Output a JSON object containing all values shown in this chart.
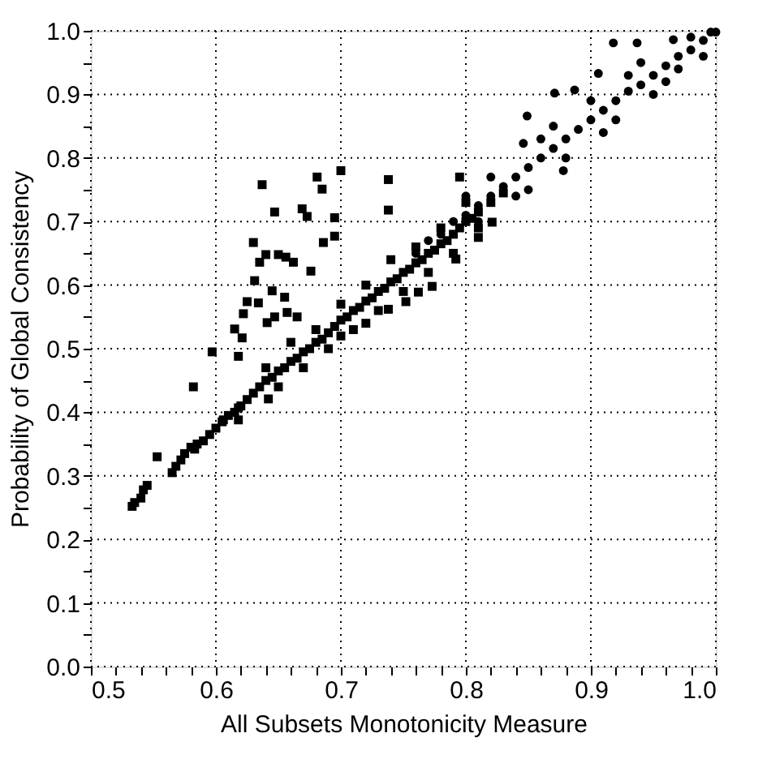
{
  "chart_data": {
    "type": "scatter",
    "xlabel": "All Subsets Monotonicity Measure",
    "ylabel": "Probability of Global Consistency",
    "xlim": [
      0.5,
      1.0
    ],
    "ylim": [
      0.0,
      1.0
    ],
    "xticks": [
      0.5,
      {
        "value": 0.52,
        "label": null
      },
      {
        "value": 0.54,
        "label": null
      },
      {
        "value": 0.56,
        "label": null
      },
      {
        "value": 0.58,
        "label": null
      },
      0.6,
      {
        "value": 0.62,
        "label": null
      },
      {
        "value": 0.64,
        "label": null
      },
      {
        "value": 0.66,
        "label": null
      },
      {
        "value": 0.68,
        "label": null
      },
      0.7,
      {
        "value": 0.72,
        "label": null
      },
      {
        "value": 0.74,
        "label": null
      },
      {
        "value": 0.76,
        "label": null
      },
      {
        "value": 0.78,
        "label": null
      },
      0.8,
      {
        "value": 0.82,
        "label": null
      },
      {
        "value": 0.84,
        "label": null
      },
      {
        "value": 0.86,
        "label": null
      },
      {
        "value": 0.88,
        "label": null
      },
      0.9,
      {
        "value": 0.92,
        "label": null
      },
      {
        "value": 0.94,
        "label": null
      },
      {
        "value": 0.96,
        "label": null
      },
      {
        "value": 0.98,
        "label": null
      },
      {
        "value": 1,
        "label": "1.0"
      }
    ],
    "yticks": [
      {
        "value": 0,
        "label": "0.0"
      },
      {
        "value": 0.05,
        "label": null
      },
      0.1,
      {
        "value": 0.15,
        "label": null
      },
      0.2,
      {
        "value": 0.25,
        "label": null
      },
      0.3,
      {
        "value": 0.35,
        "label": null
      },
      0.4,
      {
        "value": 0.45,
        "label": null
      },
      0.5,
      {
        "value": 0.55,
        "label": null
      },
      0.6,
      {
        "value": 0.65,
        "label": null
      },
      0.7,
      {
        "value": 0.75,
        "label": null
      },
      0.8,
      {
        "value": 0.85,
        "label": null
      },
      0.9,
      {
        "value": 0.95,
        "label": null
      },
      {
        "value": 1,
        "label": "1.0"
      }
    ],
    "grid": true,
    "series": [
      {
        "color": "#000000",
        "marker": "square",
        "x": [
          0.533,
          0.535,
          0.54,
          0.542,
          0.545,
          0.565,
          0.568,
          0.572,
          0.575,
          0.58,
          0.585,
          0.59,
          0.595,
          0.6,
          0.605,
          0.61,
          0.615,
          0.62,
          0.625,
          0.63,
          0.635,
          0.64,
          0.645,
          0.65,
          0.655,
          0.66,
          0.665,
          0.67,
          0.675,
          0.68,
          0.685,
          0.69,
          0.695,
          0.7,
          0.705,
          0.71,
          0.715,
          0.72,
          0.725,
          0.73,
          0.735,
          0.74,
          0.745,
          0.75,
          0.755,
          0.76,
          0.765,
          0.77,
          0.775,
          0.78,
          0.785,
          0.79,
          0.795,
          0.8,
          0.805,
          0.81,
          0.82,
          0.83,
          0.68,
          0.69,
          0.7,
          0.71,
          0.72,
          0.73,
          0.74,
          0.75,
          0.76,
          0.77,
          0.78,
          0.79,
          0.8,
          0.81,
          0.66,
          0.65,
          0.64,
          0.67,
          0.72,
          0.7,
          0.637,
          0.647,
          0.669,
          0.673,
          0.681,
          0.685,
          0.7,
          0.695,
          0.695,
          0.686,
          0.63,
          0.635,
          0.64,
          0.65,
          0.656,
          0.662,
          0.631,
          0.625,
          0.634,
          0.645,
          0.655,
          0.676,
          0.622,
          0.641,
          0.647,
          0.657,
          0.665,
          0.615,
          0.621,
          0.597,
          0.738,
          0.738,
          0.795,
          0.582,
          0.583,
          0.553,
          0.618,
          0.618,
          0.606,
          0.642,
          0.618,
          0.792,
          0.773,
          0.762,
          0.752,
          0.738,
          0.821,
          0.81
        ],
        "values": [
          0.252,
          0.258,
          0.265,
          0.278,
          0.285,
          0.305,
          0.315,
          0.325,
          0.335,
          0.345,
          0.35,
          0.355,
          0.365,
          0.375,
          0.385,
          0.395,
          0.4,
          0.41,
          0.42,
          0.43,
          0.44,
          0.45,
          0.455,
          0.465,
          0.47,
          0.48,
          0.485,
          0.495,
          0.5,
          0.51,
          0.515,
          0.525,
          0.535,
          0.545,
          0.55,
          0.56,
          0.565,
          0.575,
          0.58,
          0.59,
          0.595,
          0.605,
          0.61,
          0.62,
          0.625,
          0.635,
          0.64,
          0.65,
          0.655,
          0.665,
          0.67,
          0.68,
          0.69,
          0.7,
          0.705,
          0.715,
          0.73,
          0.745,
          0.53,
          0.5,
          0.57,
          0.53,
          0.6,
          0.56,
          0.64,
          0.59,
          0.66,
          0.62,
          0.69,
          0.65,
          0.73,
          0.69,
          0.51,
          0.44,
          0.47,
          0.47,
          0.54,
          0.52,
          0.758,
          0.715,
          0.72,
          0.708,
          0.77,
          0.751,
          0.78,
          0.706,
          0.677,
          0.667,
          0.667,
          0.636,
          0.648,
          0.648,
          0.644,
          0.636,
          0.607,
          0.574,
          0.572,
          0.591,
          0.581,
          0.622,
          0.555,
          0.541,
          0.55,
          0.557,
          0.55,
          0.531,
          0.517,
          0.495,
          0.766,
          0.718,
          0.77,
          0.44,
          0.342,
          0.33,
          0.388,
          0.407,
          0.388,
          0.421,
          0.488,
          0.641,
          0.598,
          0.589,
          0.574,
          0.562,
          0.699,
          0.675
        ]
      },
      {
        "color": "#000000",
        "marker": "circle",
        "x": [
          0.76,
          0.77,
          0.78,
          0.79,
          0.8,
          0.81,
          0.82,
          0.83,
          0.84,
          0.85,
          0.86,
          0.87,
          0.88,
          0.89,
          0.9,
          0.91,
          0.92,
          0.93,
          0.94,
          0.95,
          0.96,
          0.97,
          0.98,
          0.99,
          1.0,
          0.82,
          0.84,
          0.86,
          0.88,
          0.9,
          0.92,
          0.94,
          0.96,
          0.98,
          0.85,
          0.87,
          0.91,
          0.93,
          0.95,
          0.97,
          0.99,
          0.8,
          0.81,
          0.918,
          0.906,
          0.887,
          0.871,
          0.849,
          0.846,
          0.878,
          0.937,
          0.966,
          0.996
        ],
        "values": [
          0.65,
          0.67,
          0.68,
          0.7,
          0.71,
          0.725,
          0.74,
          0.755,
          0.77,
          0.785,
          0.8,
          0.815,
          0.83,
          0.845,
          0.86,
          0.875,
          0.89,
          0.905,
          0.915,
          0.93,
          0.945,
          0.96,
          0.97,
          0.985,
          0.998,
          0.77,
          0.74,
          0.83,
          0.8,
          0.89,
          0.86,
          0.95,
          0.92,
          0.99,
          0.75,
          0.85,
          0.84,
          0.93,
          0.9,
          0.94,
          0.96,
          0.74,
          0.7,
          0.981,
          0.933,
          0.907,
          0.902,
          0.866,
          0.823,
          0.78,
          0.981,
          0.986,
          0.998
        ]
      }
    ]
  }
}
